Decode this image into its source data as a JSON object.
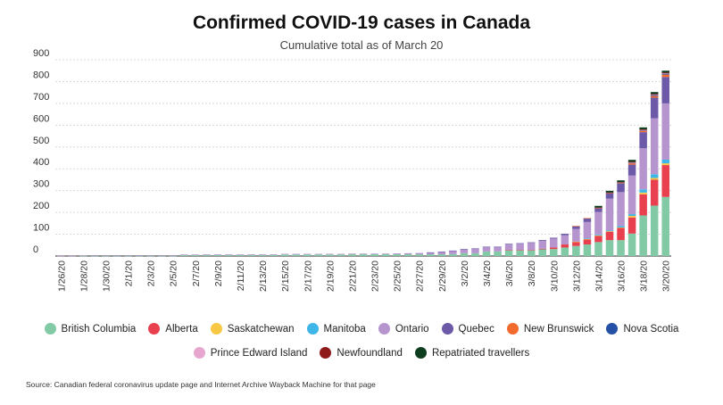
{
  "header": {
    "title": "Confirmed COVID-19 cases in Canada",
    "subtitle": "Cumulative total as of March 20"
  },
  "source": "Source: Canadian federal coronavirus update page and Internet Archive Wayback Machine for that page",
  "chart_data": {
    "type": "bar",
    "stacked": true,
    "title": "Confirmed COVID-19 cases in Canada",
    "subtitle": "Cumulative total as of March 20",
    "xlabel": "",
    "ylabel": "",
    "ylim": [
      0,
      900
    ],
    "yticks": [
      0,
      100,
      200,
      300,
      400,
      500,
      600,
      700,
      800,
      900
    ],
    "grid": true,
    "legend_position": "bottom",
    "categories": [
      "1/26/20",
      "1/27/20",
      "1/28/20",
      "1/29/20",
      "1/30/20",
      "1/31/20",
      "2/1/20",
      "2/2/20",
      "2/3/20",
      "2/4/20",
      "2/5/20",
      "2/6/20",
      "2/7/20",
      "2/8/20",
      "2/9/20",
      "2/10/20",
      "2/11/20",
      "2/12/20",
      "2/13/20",
      "2/14/20",
      "2/15/20",
      "2/16/20",
      "2/17/20",
      "2/18/20",
      "2/19/20",
      "2/20/20",
      "2/21/20",
      "2/22/20",
      "2/23/20",
      "2/24/20",
      "2/25/20",
      "2/26/20",
      "2/27/20",
      "2/28/20",
      "2/29/20",
      "3/1/20",
      "3/2/20",
      "3/3/20",
      "3/4/20",
      "3/5/20",
      "3/6/20",
      "3/7/20",
      "3/8/20",
      "3/9/20",
      "3/10/20",
      "3/11/20",
      "3/12/20",
      "3/13/20",
      "3/14/20",
      "3/15/20",
      "3/16/20",
      "3/17/20",
      "3/18/20",
      "3/19/20",
      "3/20/20"
    ],
    "tick_labels": [
      "1/26/20",
      "1/28/20",
      "1/30/20",
      "2/1/20",
      "2/3/20",
      "2/5/20",
      "2/7/20",
      "2/9/20",
      "2/11/20",
      "2/13/20",
      "2/15/20",
      "2/17/20",
      "2/19/20",
      "2/21/20",
      "2/23/20",
      "2/25/20",
      "2/27/20",
      "2/29/20",
      "3/2/20",
      "3/4/20",
      "3/6/20",
      "3/8/20",
      "3/10/20",
      "3/12/20",
      "3/14/20",
      "3/16/20",
      "3/18/20",
      "3/20/20"
    ],
    "series": [
      {
        "name": "British Columbia",
        "color": "#82c9a5",
        "values": [
          0,
          0,
          1,
          1,
          1,
          1,
          1,
          1,
          1,
          1,
          1,
          4,
          4,
          5,
          5,
          5,
          5,
          5,
          5,
          5,
          7,
          7,
          7,
          7,
          7,
          7,
          8,
          8,
          8,
          8,
          8,
          8,
          8,
          8,
          8,
          9,
          13,
          13,
          21,
          21,
          27,
          27,
          27,
          32,
          32,
          39,
          46,
          53,
          64,
          73,
          73,
          103,
          186,
          231,
          271
        ]
      },
      {
        "name": "Alberta",
        "color": "#e8404f",
        "values": [
          0,
          0,
          0,
          0,
          0,
          0,
          0,
          0,
          0,
          0,
          0,
          0,
          0,
          0,
          0,
          0,
          0,
          0,
          0,
          0,
          0,
          0,
          0,
          0,
          0,
          0,
          0,
          0,
          0,
          0,
          0,
          0,
          0,
          0,
          0,
          0,
          0,
          0,
          0,
          0,
          1,
          1,
          1,
          1,
          7,
          14,
          19,
          23,
          29,
          39,
          56,
          74,
          97,
          119,
          146
        ]
      },
      {
        "name": "Saskatchewan",
        "color": "#f6c843",
        "values": [
          0,
          0,
          0,
          0,
          0,
          0,
          0,
          0,
          0,
          0,
          0,
          0,
          0,
          0,
          0,
          0,
          0,
          0,
          0,
          0,
          0,
          0,
          0,
          0,
          0,
          0,
          0,
          0,
          0,
          0,
          0,
          0,
          0,
          0,
          0,
          0,
          0,
          0,
          0,
          0,
          0,
          0,
          0,
          0,
          0,
          0,
          1,
          2,
          2,
          2,
          2,
          7,
          8,
          8,
          8
        ]
      },
      {
        "name": "Manitoba",
        "color": "#3fb6e8",
        "values": [
          0,
          0,
          0,
          0,
          0,
          0,
          0,
          0,
          0,
          0,
          0,
          0,
          0,
          0,
          0,
          0,
          0,
          0,
          0,
          0,
          0,
          0,
          0,
          0,
          0,
          0,
          0,
          0,
          0,
          0,
          0,
          0,
          0,
          0,
          0,
          0,
          0,
          0,
          0,
          0,
          0,
          0,
          0,
          0,
          0,
          0,
          0,
          3,
          4,
          4,
          7,
          8,
          15,
          17,
          17
        ]
      },
      {
        "name": "Ontario",
        "color": "#b695cf",
        "values": [
          1,
          1,
          2,
          3,
          3,
          3,
          3,
          3,
          3,
          3,
          3,
          3,
          3,
          3,
          3,
          3,
          3,
          3,
          3,
          3,
          3,
          3,
          3,
          3,
          3,
          3,
          3,
          3,
          3,
          3,
          4,
          5,
          6,
          8,
          11,
          15,
          18,
          20,
          20,
          20,
          25,
          28,
          32,
          36,
          41,
          42,
          58,
          75,
          103,
          145,
          155,
          177,
          188,
          257,
          258
        ]
      },
      {
        "name": "Quebec",
        "color": "#6c5aa8",
        "values": [
          0,
          0,
          0,
          0,
          0,
          0,
          0,
          0,
          0,
          0,
          0,
          0,
          0,
          0,
          0,
          0,
          0,
          0,
          0,
          0,
          0,
          0,
          0,
          0,
          0,
          0,
          0,
          0,
          0,
          0,
          0,
          0,
          0,
          1,
          1,
          1,
          1,
          2,
          2,
          2,
          3,
          3,
          3,
          4,
          4,
          7,
          13,
          17,
          17,
          24,
          39,
          50,
          74,
          94,
          121
        ]
      },
      {
        "name": "New Brunswick",
        "color": "#f26a2e",
        "values": [
          0,
          0,
          0,
          0,
          0,
          0,
          0,
          0,
          0,
          0,
          0,
          0,
          0,
          0,
          0,
          0,
          0,
          0,
          0,
          0,
          0,
          0,
          0,
          0,
          0,
          0,
          0,
          0,
          0,
          0,
          0,
          0,
          0,
          0,
          0,
          0,
          0,
          0,
          0,
          0,
          0,
          0,
          0,
          0,
          0,
          0,
          1,
          1,
          1,
          2,
          2,
          6,
          6,
          8,
          11
        ]
      },
      {
        "name": "Nova Scotia",
        "color": "#2451a6",
        "values": [
          0,
          0,
          0,
          0,
          0,
          0,
          0,
          0,
          0,
          0,
          0,
          0,
          0,
          0,
          0,
          0,
          0,
          0,
          0,
          0,
          0,
          0,
          0,
          0,
          0,
          0,
          0,
          0,
          0,
          0,
          0,
          0,
          0,
          0,
          0,
          0,
          0,
          0,
          0,
          0,
          0,
          0,
          0,
          0,
          0,
          0,
          0,
          0,
          0,
          0,
          3,
          3,
          3,
          5,
          5
        ]
      },
      {
        "name": "Prince Edward Island",
        "color": "#e7a6cf",
        "values": [
          0,
          0,
          0,
          0,
          0,
          0,
          0,
          0,
          0,
          0,
          0,
          0,
          0,
          0,
          0,
          0,
          0,
          0,
          0,
          0,
          0,
          0,
          0,
          0,
          0,
          0,
          0,
          0,
          0,
          0,
          0,
          0,
          0,
          0,
          0,
          0,
          0,
          0,
          0,
          0,
          0,
          0,
          0,
          0,
          0,
          0,
          0,
          0,
          1,
          1,
          1,
          1,
          1,
          1,
          1
        ]
      },
      {
        "name": "Newfoundland",
        "color": "#8e1a1a",
        "values": [
          0,
          0,
          0,
          0,
          0,
          0,
          0,
          0,
          0,
          0,
          0,
          0,
          0,
          0,
          0,
          0,
          0,
          0,
          0,
          0,
          0,
          0,
          0,
          0,
          0,
          0,
          0,
          0,
          0,
          0,
          0,
          0,
          0,
          0,
          0,
          0,
          0,
          0,
          0,
          0,
          0,
          0,
          0,
          0,
          0,
          0,
          0,
          0,
          1,
          1,
          1,
          3,
          3,
          3,
          3
        ]
      },
      {
        "name": "Repatriated travellers",
        "color": "#0f3d1f",
        "values": [
          0,
          0,
          0,
          0,
          0,
          0,
          0,
          0,
          0,
          0,
          0,
          0,
          0,
          0,
          0,
          0,
          0,
          0,
          0,
          0,
          0,
          0,
          0,
          0,
          0,
          0,
          0,
          0,
          0,
          0,
          0,
          0,
          0,
          0,
          0,
          0,
          0,
          0,
          0,
          0,
          0,
          0,
          0,
          0,
          0,
          0,
          0,
          0,
          8,
          8,
          8,
          9,
          9,
          9,
          9
        ]
      }
    ]
  }
}
